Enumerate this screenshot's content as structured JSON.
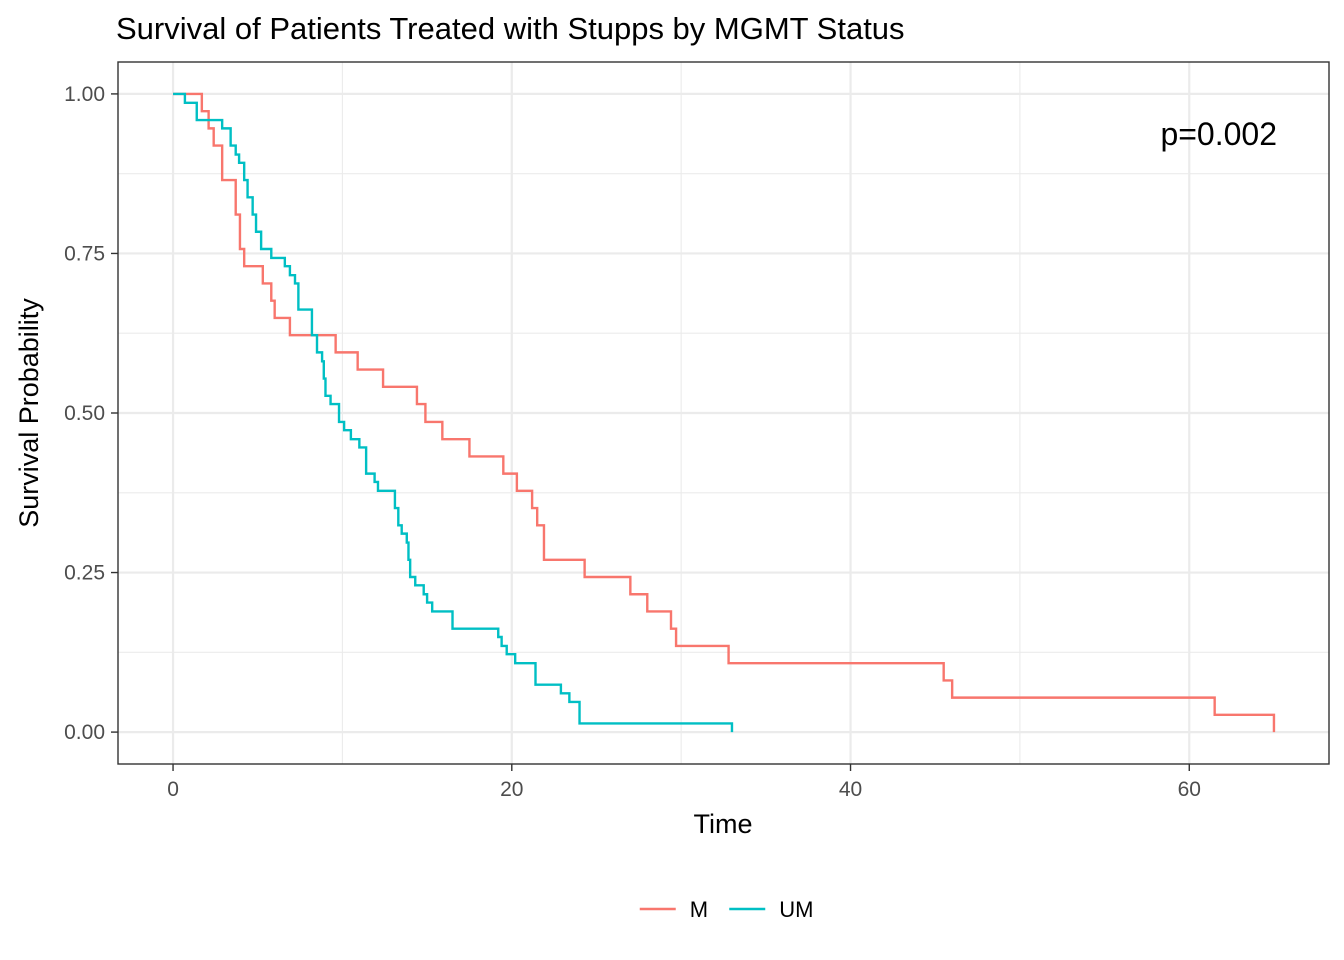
{
  "chart_data": {
    "type": "line",
    "title": "Survival of Patients Treated with Stupps by MGMT Status",
    "xlabel": "Time",
    "ylabel": "Survival Probability",
    "xlim": [
      -3.25,
      68.25
    ],
    "ylim": [
      -0.05,
      1.05
    ],
    "x_ticks": [
      0,
      20,
      40,
      60
    ],
    "x_tick_labels": [
      "0",
      "20",
      "40",
      "60"
    ],
    "y_ticks": [
      0,
      0.25,
      0.5,
      0.75,
      1.0
    ],
    "y_tick_labels": [
      "0.00",
      "0.25",
      "0.50",
      "0.75",
      "1.00"
    ],
    "grid": true,
    "legend_position": "bottom",
    "annotation": "p=0.002",
    "colors": {
      "M": "#F8766D",
      "UM": "#00BFC4"
    },
    "series": [
      {
        "name": "M",
        "color": "#F8766D",
        "points": [
          [
            0,
            1.0
          ],
          [
            1.7,
            0.973
          ],
          [
            2.1,
            0.946
          ],
          [
            2.4,
            0.919
          ],
          [
            2.9,
            0.865
          ],
          [
            3.7,
            0.811
          ],
          [
            3.95,
            0.757
          ],
          [
            4.2,
            0.73
          ],
          [
            5.3,
            0.703
          ],
          [
            5.8,
            0.676
          ],
          [
            6.0,
            0.649
          ],
          [
            6.9,
            0.622
          ],
          [
            9.6,
            0.595
          ],
          [
            10.9,
            0.568
          ],
          [
            12.4,
            0.541
          ],
          [
            14.4,
            0.514
          ],
          [
            14.9,
            0.486
          ],
          [
            15.9,
            0.459
          ],
          [
            17.5,
            0.432
          ],
          [
            19.5,
            0.405
          ],
          [
            20.3,
            0.378
          ],
          [
            21.2,
            0.351
          ],
          [
            21.5,
            0.324
          ],
          [
            21.9,
            0.27
          ],
          [
            24.3,
            0.243
          ],
          [
            27.0,
            0.216
          ],
          [
            28.0,
            0.189
          ],
          [
            29.4,
            0.162
          ],
          [
            29.7,
            0.135
          ],
          [
            32.8,
            0.108
          ],
          [
            45.5,
            0.081
          ],
          [
            46.0,
            0.054
          ],
          [
            61.5,
            0.027
          ],
          [
            65.0,
            0.0
          ]
        ]
      },
      {
        "name": "UM",
        "color": "#00BFC4",
        "points": [
          [
            0,
            1.0
          ],
          [
            0.7,
            0.986
          ],
          [
            1.4,
            0.959
          ],
          [
            2.9,
            0.946
          ],
          [
            3.4,
            0.919
          ],
          [
            3.7,
            0.905
          ],
          [
            3.9,
            0.892
          ],
          [
            4.2,
            0.865
          ],
          [
            4.4,
            0.838
          ],
          [
            4.7,
            0.811
          ],
          [
            4.9,
            0.784
          ],
          [
            5.2,
            0.757
          ],
          [
            5.8,
            0.743
          ],
          [
            6.6,
            0.73
          ],
          [
            6.9,
            0.716
          ],
          [
            7.2,
            0.703
          ],
          [
            7.4,
            0.662
          ],
          [
            8.2,
            0.622
          ],
          [
            8.5,
            0.595
          ],
          [
            8.8,
            0.581
          ],
          [
            8.9,
            0.554
          ],
          [
            9.0,
            0.527
          ],
          [
            9.3,
            0.514
          ],
          [
            9.8,
            0.486
          ],
          [
            10.1,
            0.473
          ],
          [
            10.5,
            0.459
          ],
          [
            11.0,
            0.446
          ],
          [
            11.4,
            0.405
          ],
          [
            11.9,
            0.392
          ],
          [
            12.1,
            0.378
          ],
          [
            13.1,
            0.351
          ],
          [
            13.3,
            0.324
          ],
          [
            13.5,
            0.311
          ],
          [
            13.8,
            0.297
          ],
          [
            13.9,
            0.27
          ],
          [
            14.0,
            0.243
          ],
          [
            14.3,
            0.23
          ],
          [
            14.8,
            0.216
          ],
          [
            15.0,
            0.203
          ],
          [
            15.3,
            0.189
          ],
          [
            16.5,
            0.162
          ],
          [
            19.2,
            0.149
          ],
          [
            19.4,
            0.135
          ],
          [
            19.7,
            0.122
          ],
          [
            20.2,
            0.108
          ],
          [
            21.4,
            0.0743
          ],
          [
            22.9,
            0.0608
          ],
          [
            23.4,
            0.0473
          ],
          [
            24.0,
            0.0135
          ],
          [
            33.0,
            0.0
          ]
        ]
      }
    ]
  }
}
